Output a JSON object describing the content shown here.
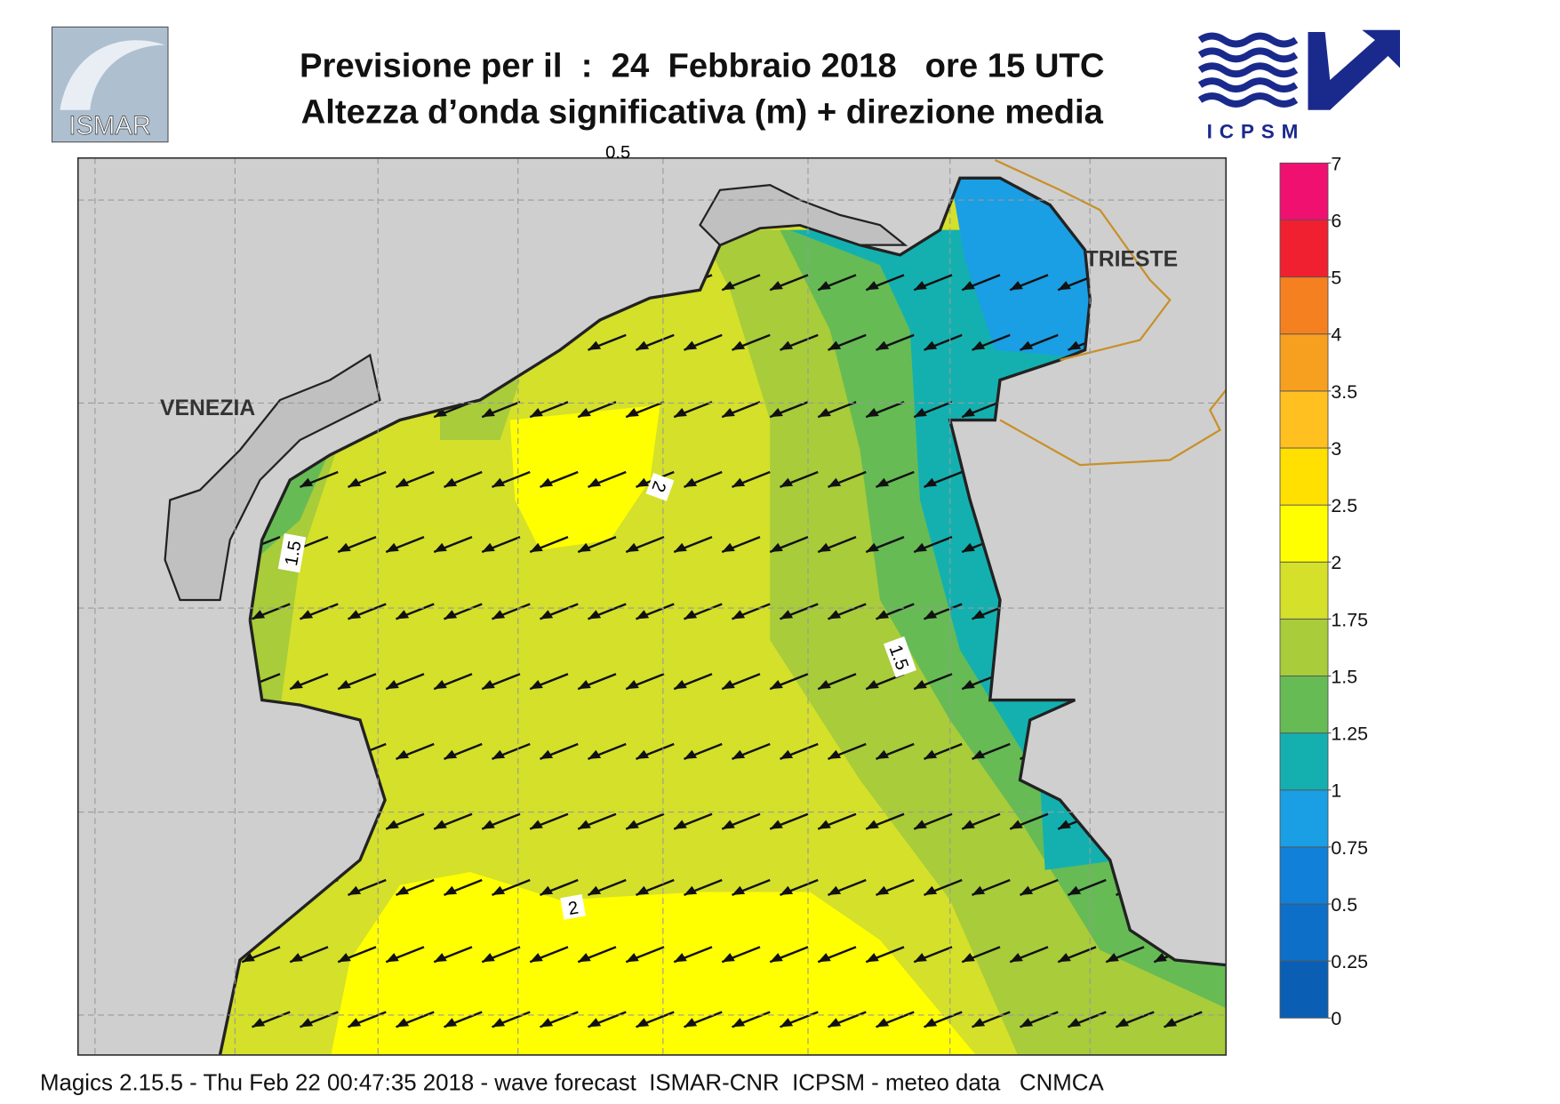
{
  "header": {
    "title": "Previsione per il  :  24  Febbraio 2018   ore 15 UTC",
    "subtitle": "Altezza d’onda significativa (m) + direzione media",
    "left_logo": "ISMAR",
    "right_logo": "ICPSM"
  },
  "map": {
    "places": [
      "VENEZIA",
      "TRIESTE"
    ],
    "contour_labels": [
      1.5,
      2,
      1.5,
      2,
      0.5
    ]
  },
  "colorbar": {
    "ticks": [
      0,
      0.25,
      0.5,
      0.75,
      1,
      1.25,
      1.5,
      1.75,
      2,
      2.5,
      3,
      3.5,
      4,
      5,
      6,
      7
    ],
    "colors": [
      "#0a5fb4",
      "#0d6fc8",
      "#1080d8",
      "#1a9ee4",
      "#14b0b0",
      "#66bb55",
      "#a8cc3a",
      "#d4e02a",
      "#ffff00",
      "#ffe000",
      "#ffc020",
      "#f7a020",
      "#f58020",
      "#f02030",
      "#f01070"
    ]
  },
  "footer": "Magics 2.15.5 - Thu Feb 22 00:47:35 2018 - wave forecast  ISMAR-CNR  ICPSM - meteo data   CNMCA"
}
